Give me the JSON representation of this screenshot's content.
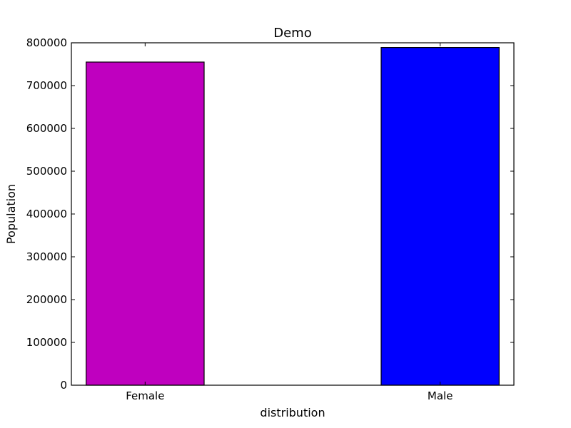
{
  "chart_data": {
    "type": "bar",
    "title": "Demo",
    "xlabel": "distribution",
    "ylabel": "Population",
    "categories": [
      "Female",
      "Male"
    ],
    "values": [
      755000,
      789000
    ],
    "colors": [
      "#bf00bf",
      "#0000ff"
    ],
    "ylim": [
      0,
      800000
    ],
    "yticks": [
      0,
      100000,
      200000,
      300000,
      400000,
      500000,
      600000,
      700000,
      800000
    ],
    "grid": false,
    "legend": "none"
  }
}
